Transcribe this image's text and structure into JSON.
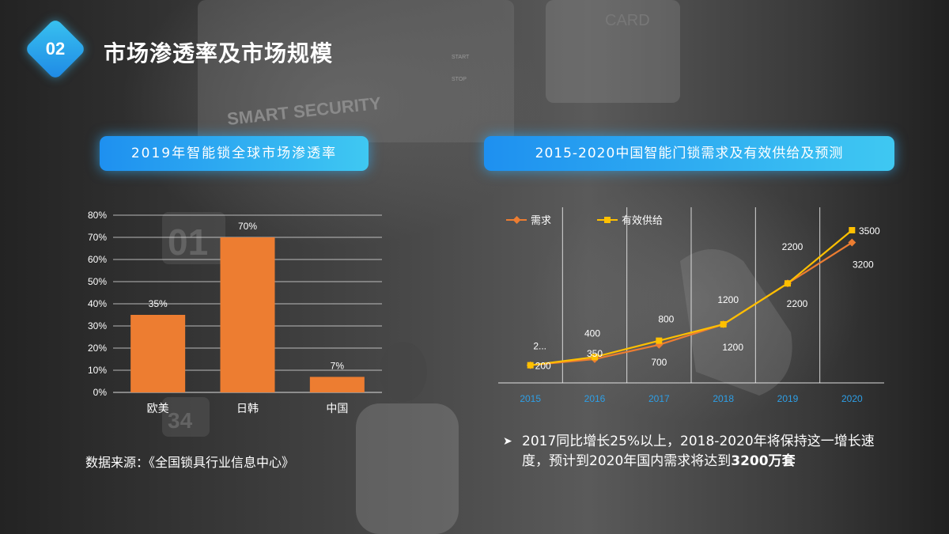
{
  "header": {
    "number": "02",
    "title": "市场渗透率及市场规模"
  },
  "background_text": {
    "card": "CARD",
    "smart_security": "SMART SECURITY",
    "start": "START",
    "stop": "STOP",
    "k01": "01",
    "k34": "34"
  },
  "colors": {
    "accent_blue": "#2aa6ec",
    "bar_orange": "#ed7d31",
    "demand_line": "#ed7d31",
    "supply_line": "#ffc000"
  },
  "chart_data": [
    {
      "type": "bar",
      "title": "2019年智能锁全球市场渗透率",
      "categories": [
        "欧美",
        "日韩",
        "中国"
      ],
      "values": [
        35,
        70,
        7
      ],
      "labels": [
        "35%",
        "70%",
        "7%"
      ],
      "ylim": [
        0,
        80
      ],
      "yticks": [
        "0%",
        "10%",
        "20%",
        "30%",
        "40%",
        "50%",
        "60%",
        "70%",
        "80%"
      ],
      "grid": true
    },
    {
      "type": "line",
      "title": "2015-2020中国智能门锁需求及有效供给及预测",
      "x": [
        "2015",
        "2016",
        "2017",
        "2018",
        "2019",
        "2020"
      ],
      "series": [
        {
          "name": "需求",
          "values": [
            200,
            350,
            700,
            1200,
            2200,
            3200
          ],
          "labels": [
            "200",
            "350",
            "700",
            "1200",
            "2200",
            "3200"
          ]
        },
        {
          "name": "有效供给",
          "values": [
            200,
            400,
            800,
            1200,
            2200,
            3500
          ],
          "labels": [
            "2...",
            "400",
            "800",
            "1200",
            "2200",
            "3500"
          ]
        }
      ],
      "ylim": [
        0,
        3600
      ],
      "legend": "top-left",
      "grid": true
    }
  ],
  "source": "数据来源：《全国锁具行业信息中心》",
  "note": {
    "arrow": "➤",
    "text": "2017同比增长25%以上，2018-2020年将保持这一增长速度，预计到2020年国内需求将达到",
    "highlight": "3200万套"
  }
}
